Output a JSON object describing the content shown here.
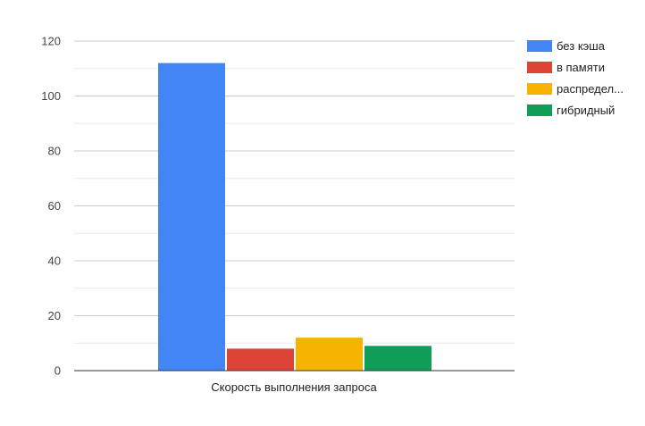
{
  "chart_data": {
    "type": "bar",
    "title": "",
    "xlabel": "",
    "ylabel": "",
    "categories": [
      "Скорость выполнения запроса"
    ],
    "series": [
      {
        "name": "без кэша",
        "legend_label": "без кэша",
        "color": "#4285f4",
        "values": [
          112
        ]
      },
      {
        "name": "в памяти",
        "legend_label": "в памяти",
        "color": "#db4437",
        "values": [
          8
        ]
      },
      {
        "name": "распределенный",
        "legend_label": "распредел...",
        "color": "#f4b400",
        "values": [
          12
        ]
      },
      {
        "name": "гибридный",
        "legend_label": "гибридный",
        "color": "#0f9d58",
        "values": [
          9
        ]
      }
    ],
    "ylim": [
      0,
      120
    ],
    "yticks": [
      "0",
      "20",
      "40",
      "60",
      "80",
      "100",
      "120"
    ],
    "yticks_values": [
      0,
      20,
      40,
      60,
      80,
      100,
      120
    ],
    "minor_gridlines": true,
    "grid": true,
    "legend_position": "right"
  }
}
